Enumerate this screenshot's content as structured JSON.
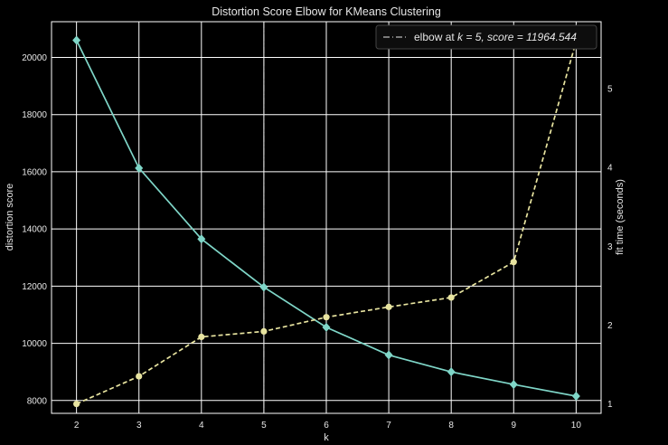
{
  "chart_data": {
    "type": "line",
    "title": "Distortion Score Elbow for KMeans Clustering",
    "xlabel": "k",
    "ylabel": "distortion score",
    "y2label": "fit time (seconds)",
    "x": [
      2,
      3,
      4,
      5,
      6,
      7,
      8,
      9,
      10
    ],
    "xlim": [
      1.6,
      10.4
    ],
    "ylim": [
      7550,
      21250
    ],
    "y2lim": [
      0.88,
      5.85
    ],
    "yticks": [
      8000,
      10000,
      12000,
      14000,
      16000,
      18000,
      20000
    ],
    "y2ticks": [
      1,
      2,
      3,
      4,
      5
    ],
    "series": [
      {
        "axis": "left",
        "color": "#7fd6c8",
        "marker": "diamond",
        "style": "solid",
        "values": [
          20600,
          16130,
          13650,
          11964.544,
          10560,
          9590,
          9000,
          8560,
          8150
        ]
      },
      {
        "axis": "right",
        "color": "#e8e4a0",
        "marker": "circle",
        "style": "dashed",
        "values": [
          1.0,
          1.35,
          1.85,
          1.92,
          2.1,
          2.23,
          2.35,
          2.8,
          5.6
        ]
      }
    ],
    "elbow": {
      "k": 5,
      "label_prefix": "elbow at ",
      "label_math": "k = 5, score = 11964.544"
    },
    "grid": true,
    "legend_position": "top-right"
  }
}
